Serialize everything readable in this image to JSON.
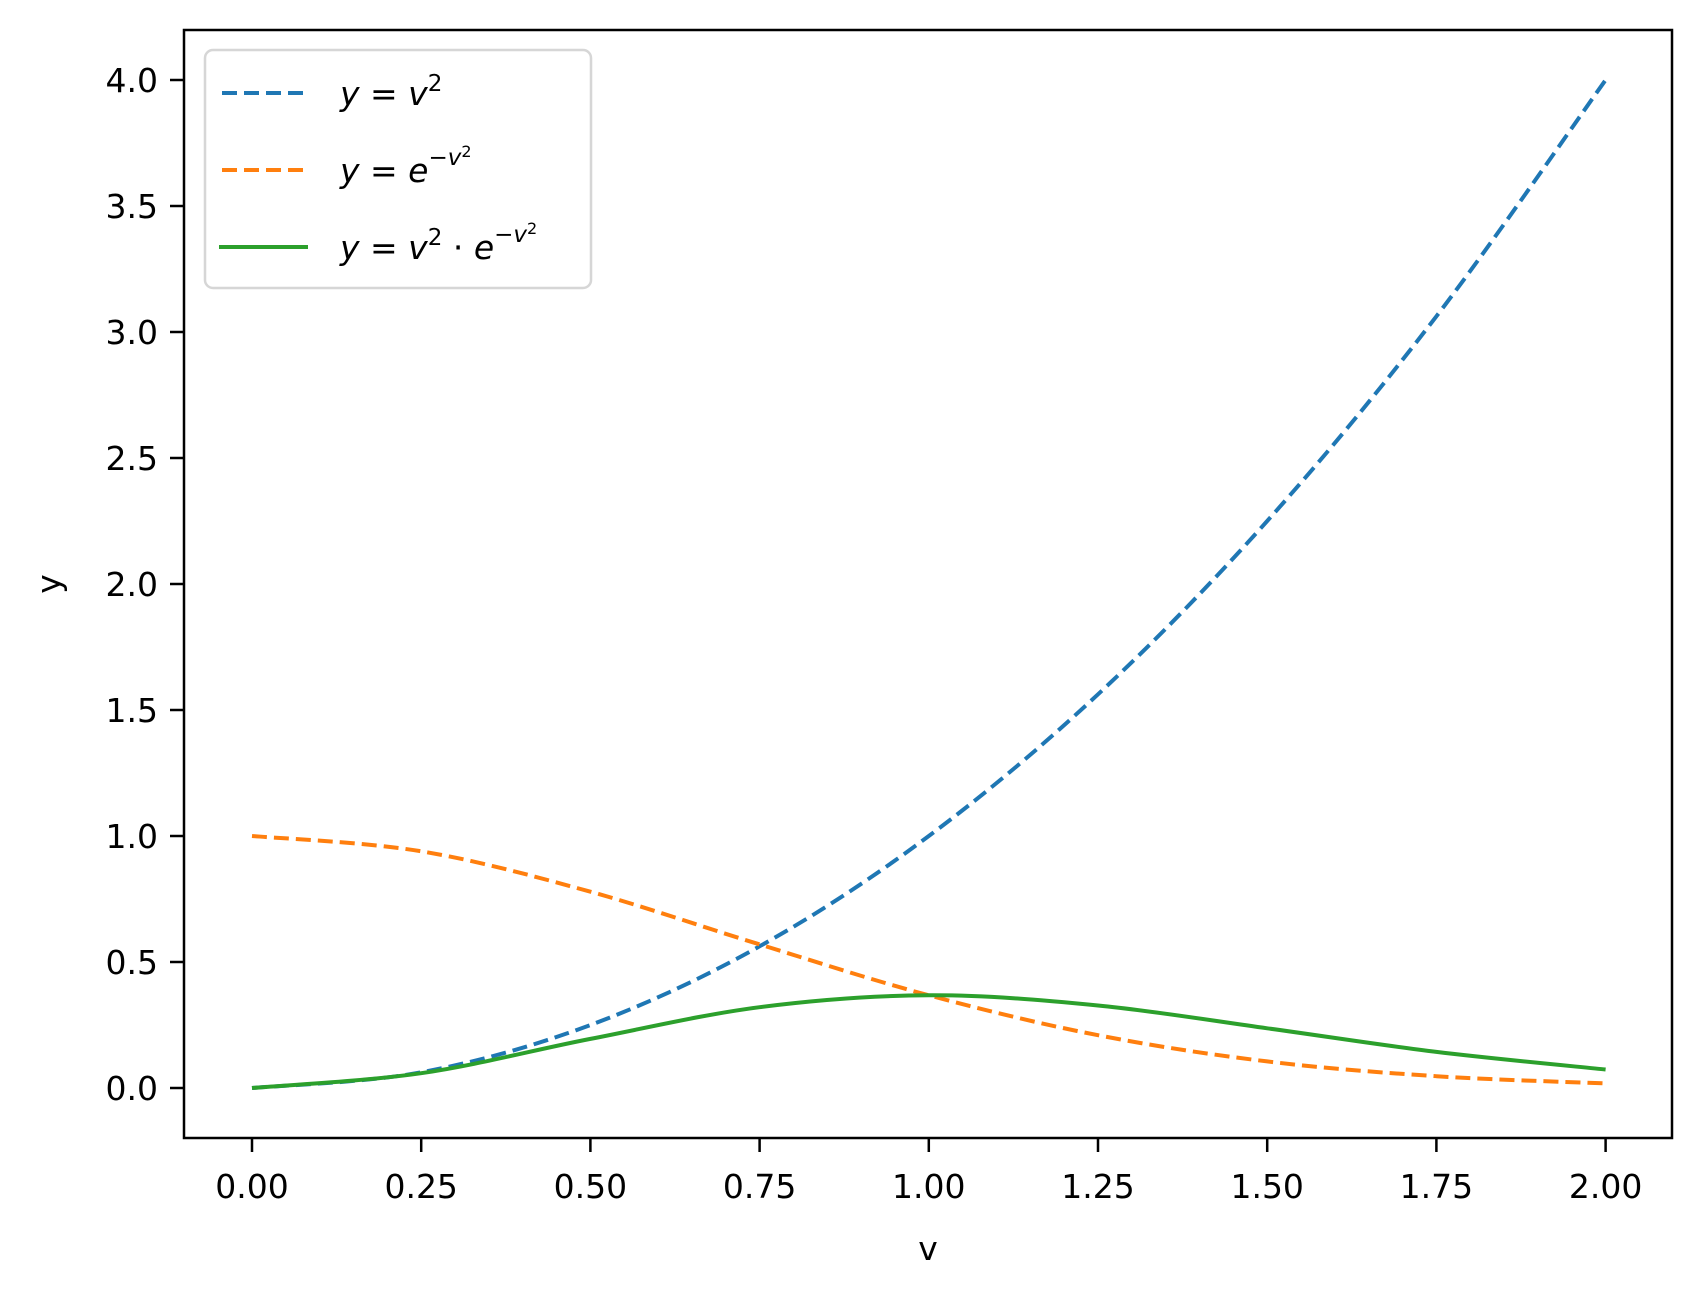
{
  "chart_data": {
    "type": "line",
    "title": "",
    "xlabel": "v",
    "ylabel": "y",
    "xlim": [
      -0.1,
      2.1
    ],
    "ylim": [
      -0.2,
      4.2
    ],
    "grid": false,
    "legend_position": "upper left",
    "x_ticks": [
      "0.00",
      "0.25",
      "0.50",
      "0.75",
      "1.00",
      "1.25",
      "1.50",
      "1.75",
      "2.00"
    ],
    "y_ticks": [
      "0.0",
      "0.5",
      "1.0",
      "1.5",
      "2.0",
      "2.5",
      "3.0",
      "3.5",
      "4.0"
    ],
    "x": [
      0.0,
      0.25,
      0.5,
      0.75,
      1.0,
      1.25,
      1.5,
      1.75,
      2.0
    ],
    "series": [
      {
        "name": "y = v^2",
        "label_parts": {
          "lhs": "y",
          "eq": " = ",
          "base": "v",
          "sup": "2"
        },
        "color": "#1f77b4",
        "style": "dashed",
        "values": [
          0.0,
          0.0625,
          0.25,
          0.5625,
          1.0,
          1.5625,
          2.25,
          3.0625,
          4.0
        ]
      },
      {
        "name": "y = e^(-v^2)",
        "label_parts": {
          "lhs": "y",
          "eq": " = ",
          "base": "e",
          "sup": "−v",
          "sup2": "2"
        },
        "color": "#ff7f0e",
        "style": "dashed",
        "values": [
          1.0,
          0.9394,
          0.7788,
          0.5698,
          0.3679,
          0.2096,
          0.1054,
          0.0468,
          0.0183
        ]
      },
      {
        "name": "y = v^2 · e^(-v^2)",
        "label_parts": {
          "lhs": "y",
          "eq": " = ",
          "base": "v",
          "sup": "2",
          "dot": " · ",
          "base2": "e",
          "sup_b": "−v",
          "sup2": "2"
        },
        "color": "#2ca02c",
        "style": "solid",
        "values": [
          0.0,
          0.0587,
          0.1947,
          0.3205,
          0.3679,
          0.3275,
          0.2371,
          0.1433,
          0.0733
        ]
      }
    ]
  }
}
